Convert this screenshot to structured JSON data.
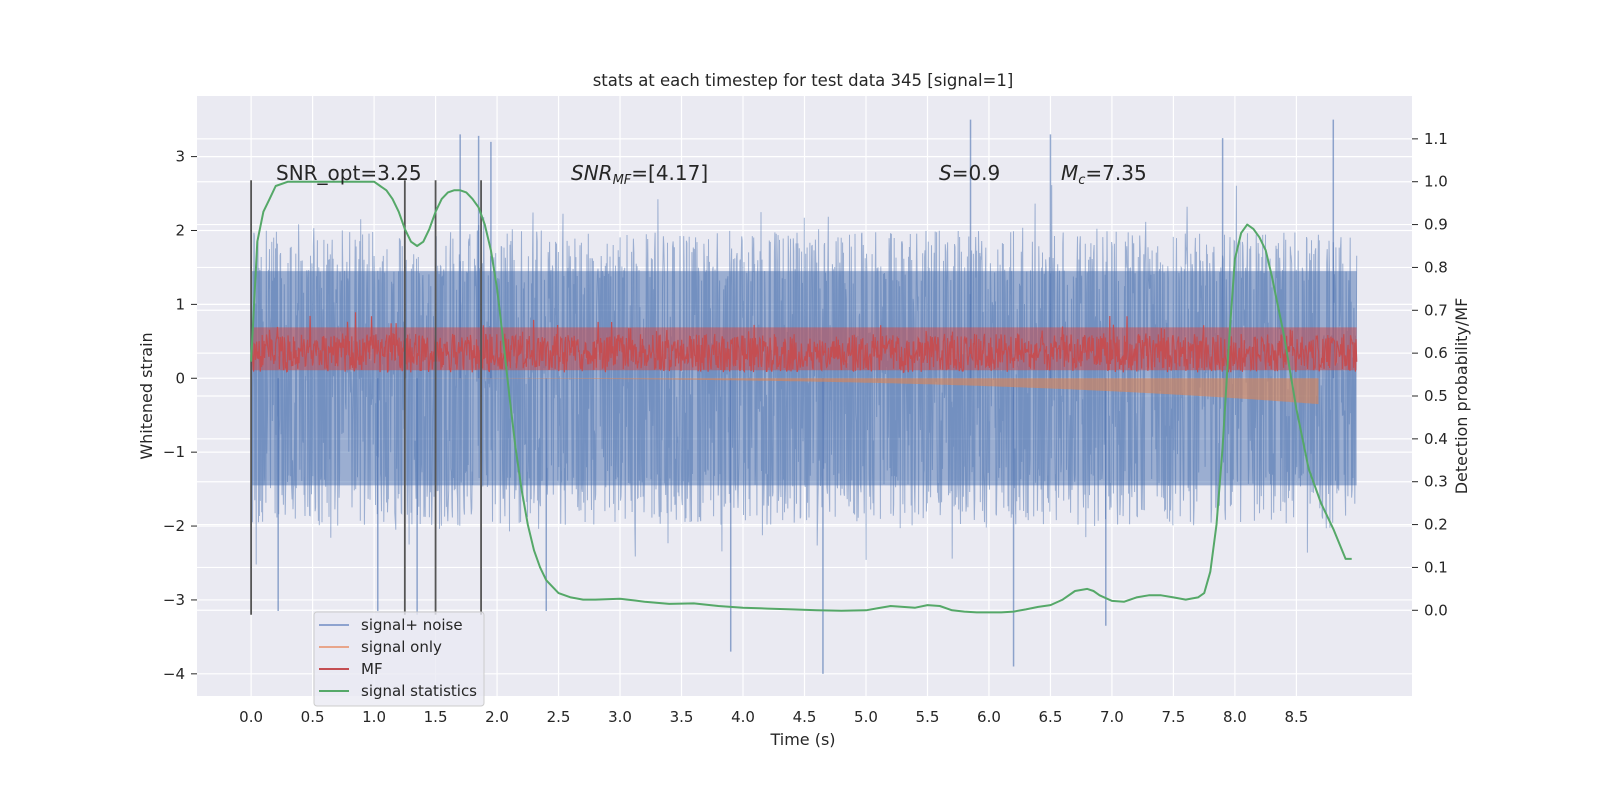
{
  "chart_data": {
    "type": "line",
    "title": "stats at each timestep for test data 345 [signal=1]",
    "xlabel": "Time (s)",
    "ylabel": "Whitened strain",
    "y2label": "Detection probability/MF",
    "xlim": [
      -0.44,
      9.44
    ],
    "ylim": [
      -4.3,
      3.82
    ],
    "y2lim": [
      -0.2,
      1.2
    ],
    "x_ticks": [
      "0.0",
      "0.5",
      "1.0",
      "1.5",
      "2.0",
      "2.5",
      "3.0",
      "3.5",
      "4.0",
      "4.5",
      "5.0",
      "5.5",
      "6.0",
      "6.5",
      "7.0",
      "7.5",
      "8.0",
      "8.5"
    ],
    "y_ticks": [
      "3",
      "2",
      "1",
      "0",
      "−1",
      "−2",
      "−3",
      "−4"
    ],
    "y2_ticks": [
      "1.1",
      "1.0",
      "0.9",
      "0.8",
      "0.7",
      "0.6",
      "0.5",
      "0.4",
      "0.3",
      "0.2",
      "0.1",
      "0.0"
    ],
    "grid": true,
    "legend_position": "lower-left",
    "annotations": [
      {
        "text": "SNR_opt=3.25",
        "x": 0.2,
        "y": 2.7
      },
      {
        "parts": [
          "SNR",
          "MF",
          "=[4.17]"
        ],
        "x": 2.6,
        "y": 2.7
      },
      {
        "parts": [
          "S",
          "=0.9"
        ],
        "x": 5.6,
        "y": 2.7
      },
      {
        "parts": [
          "M",
          "c",
          "=7.35"
        ],
        "x": 6.6,
        "y": 2.7
      }
    ],
    "vertical_lines": [
      {
        "x": 0.0,
        "y_top": 2.68,
        "y_bottom": -3.2
      },
      {
        "x": 1.25,
        "y_top": 2.68,
        "y_bottom": -3.2
      },
      {
        "x": 1.5,
        "y_top": 2.68,
        "y_bottom": -3.2
      },
      {
        "x": 1.87,
        "y_top": 2.68,
        "y_bottom": -3.2
      }
    ],
    "series": [
      {
        "name": "signal+ noise",
        "axis": "left",
        "color": "#4c72b0",
        "opacity": 0.5,
        "x_range": [
          0.0,
          8.99
        ],
        "envelope_typical": [
          -1.45,
          1.45
        ],
        "peaks": [
          {
            "x": 0.22,
            "y": -3.15
          },
          {
            "x": 1.03,
            "y": -3.15
          },
          {
            "x": 1.35,
            "y": -3.2
          },
          {
            "x": 1.7,
            "y": 3.3
          },
          {
            "x": 1.85,
            "y": 3.28
          },
          {
            "x": 1.95,
            "y": 3.2
          },
          {
            "x": 2.4,
            "y": -3.15
          },
          {
            "x": 3.9,
            "y": -3.7
          },
          {
            "x": 4.65,
            "y": -4.0
          },
          {
            "x": 5.85,
            "y": 3.5
          },
          {
            "x": 6.2,
            "y": -3.9
          },
          {
            "x": 6.95,
            "y": -3.35
          },
          {
            "x": 8.8,
            "y": 3.5
          },
          {
            "x": 6.5,
            "y": 3.3
          },
          {
            "x": 7.9,
            "y": 3.25
          }
        ]
      },
      {
        "name": "signal only",
        "axis": "left",
        "color": "#dd8452",
        "opacity": 0.6,
        "x_range": [
          0.0,
          8.68
        ],
        "amplitude_at_end": -0.35
      },
      {
        "name": "MF",
        "axis": "right",
        "color": "#c44e52",
        "x_range": [
          0.0,
          8.99
        ],
        "level": 0.6,
        "band": [
          0.56,
          0.66
        ]
      },
      {
        "name": "signal statistics",
        "axis": "right",
        "color": "#55a868",
        "x": [
          0.0,
          0.05,
          0.1,
          0.15,
          0.2,
          0.3,
          0.4,
          0.5,
          0.6,
          0.7,
          0.8,
          0.9,
          1.0,
          1.05,
          1.1,
          1.15,
          1.2,
          1.25,
          1.3,
          1.35,
          1.4,
          1.45,
          1.5,
          1.55,
          1.6,
          1.65,
          1.7,
          1.75,
          1.8,
          1.85,
          1.9,
          1.95,
          2.0,
          2.05,
          2.1,
          2.15,
          2.2,
          2.25,
          2.3,
          2.35,
          2.4,
          2.5,
          2.6,
          2.7,
          2.8,
          3.0,
          3.2,
          3.4,
          3.6,
          3.8,
          4.0,
          4.2,
          4.4,
          4.6,
          4.8,
          5.0,
          5.1,
          5.2,
          5.3,
          5.4,
          5.5,
          5.6,
          5.7,
          5.8,
          5.9,
          6.0,
          6.1,
          6.2,
          6.3,
          6.4,
          6.5,
          6.6,
          6.7,
          6.8,
          6.85,
          6.9,
          7.0,
          7.1,
          7.2,
          7.3,
          7.4,
          7.5,
          7.6,
          7.7,
          7.75,
          7.8,
          7.85,
          7.9,
          7.95,
          8.0,
          8.05,
          8.1,
          8.15,
          8.2,
          8.25,
          8.3,
          8.4,
          8.5,
          8.6,
          8.7,
          8.8,
          8.9,
          8.95
        ],
        "values": [
          0.58,
          0.86,
          0.93,
          0.96,
          0.99,
          1.0,
          1.0,
          1.0,
          1.0,
          1.0,
          1.0,
          1.0,
          1.0,
          0.99,
          0.98,
          0.96,
          0.93,
          0.89,
          0.86,
          0.85,
          0.86,
          0.89,
          0.93,
          0.96,
          0.975,
          0.98,
          0.98,
          0.975,
          0.96,
          0.94,
          0.9,
          0.84,
          0.75,
          0.63,
          0.5,
          0.38,
          0.28,
          0.2,
          0.14,
          0.1,
          0.07,
          0.04,
          0.03,
          0.025,
          0.025,
          0.027,
          0.02,
          0.015,
          0.016,
          0.01,
          0.006,
          0.004,
          0.002,
          0.0,
          -0.001,
          0.0,
          0.005,
          0.01,
          0.008,
          0.006,
          0.012,
          0.01,
          0.0,
          -0.003,
          -0.005,
          -0.005,
          -0.005,
          -0.003,
          0.002,
          0.008,
          0.012,
          0.025,
          0.045,
          0.05,
          0.045,
          0.035,
          0.022,
          0.02,
          0.03,
          0.035,
          0.035,
          0.03,
          0.025,
          0.03,
          0.04,
          0.09,
          0.2,
          0.38,
          0.62,
          0.82,
          0.88,
          0.9,
          0.89,
          0.87,
          0.84,
          0.78,
          0.64,
          0.47,
          0.33,
          0.25,
          0.19,
          0.12,
          0.12
        ]
      }
    ]
  },
  "legend": {
    "items": [
      "signal+ noise",
      "signal only",
      "MF",
      "signal statistics"
    ],
    "colors": [
      "#8ea3cf",
      "#e8a58a",
      "#c44e52",
      "#55a868"
    ]
  },
  "colors": {
    "plot_background": "#eaeaf2",
    "grid": "#ffffff",
    "vertical_line": "#555555"
  }
}
